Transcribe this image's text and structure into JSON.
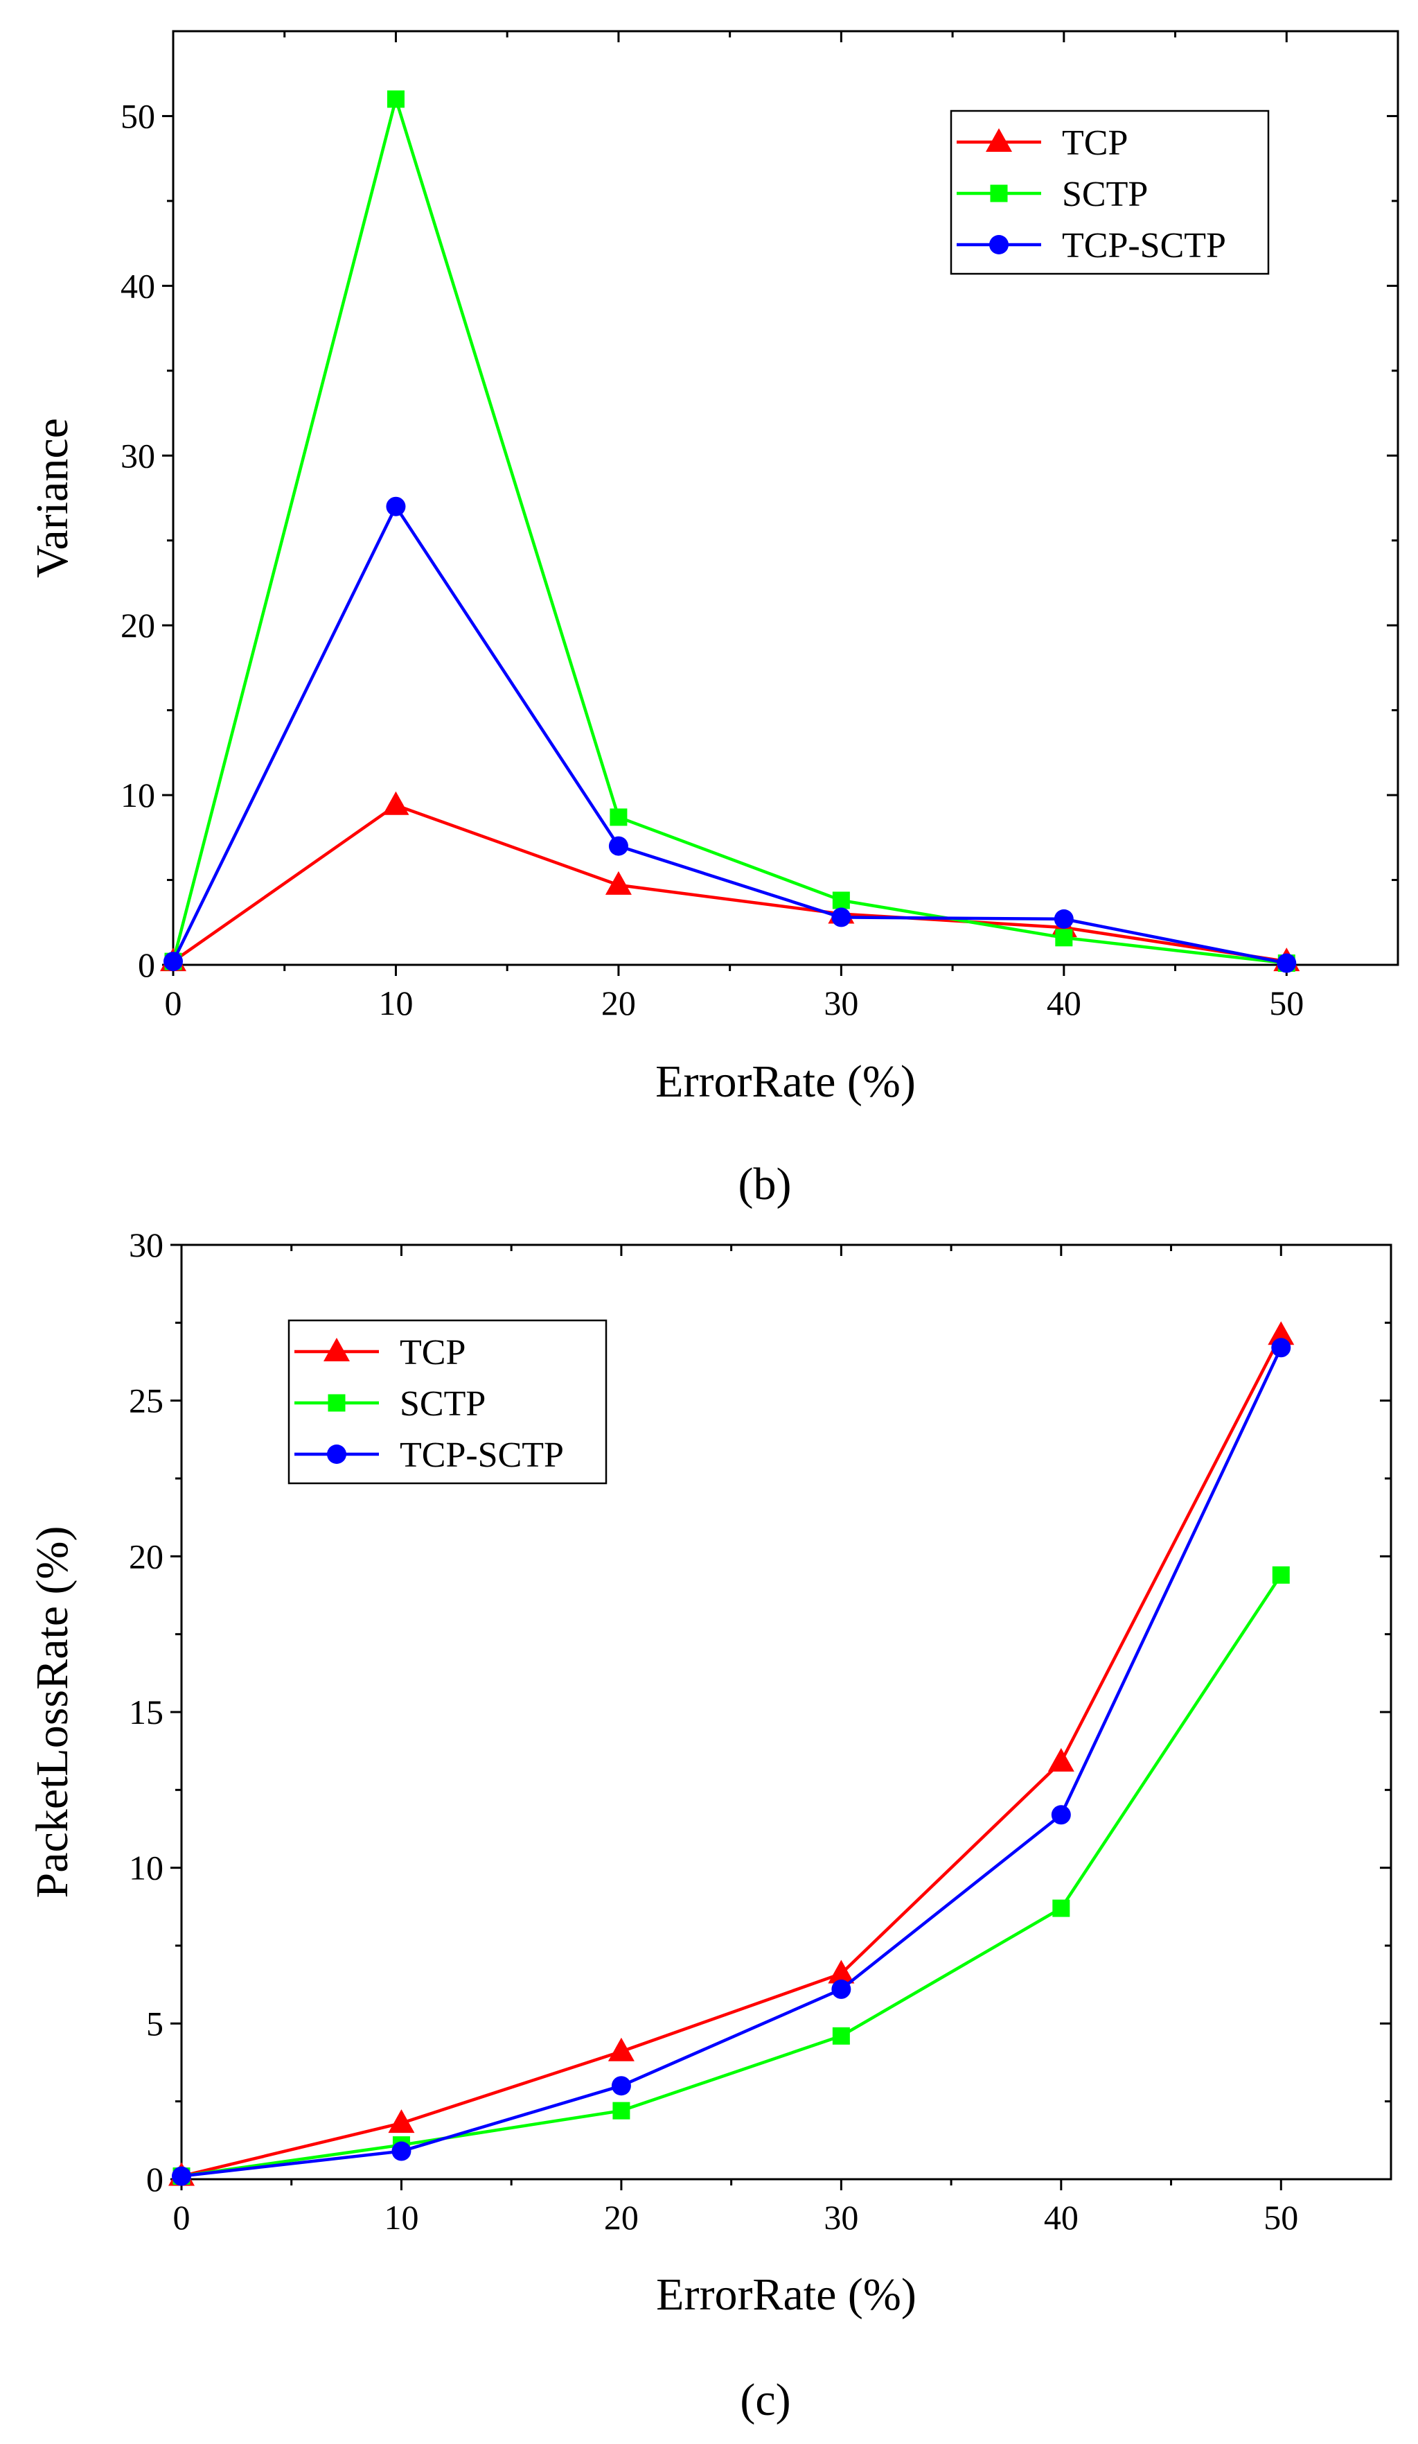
{
  "chart_data": [
    {
      "id": "b",
      "type": "line",
      "panel_label": "(b)",
      "title": "",
      "xlabel": "ErrorRate (%)",
      "ylabel": "Variance",
      "x": [
        0,
        10,
        20,
        30,
        40,
        50
      ],
      "xlim": [
        0,
        55
      ],
      "ylim": [
        0,
        55
      ],
      "x_ticks": [
        0,
        10,
        20,
        30,
        40,
        50
      ],
      "y_ticks": [
        0,
        10,
        20,
        30,
        40,
        50
      ],
      "grid": false,
      "legend_position": "top-right",
      "series": [
        {
          "name": "TCP",
          "color": "#ff0000",
          "marker": "triangle",
          "values": [
            0.2,
            9.4,
            4.7,
            3.0,
            2.2,
            0.2
          ]
        },
        {
          "name": "SCTP",
          "color": "#00ff00",
          "marker": "square",
          "values": [
            0.2,
            51.0,
            8.7,
            3.8,
            1.6,
            0.1
          ]
        },
        {
          "name": "TCP-SCTP",
          "color": "#0000ff",
          "marker": "circle",
          "values": [
            0.2,
            27.0,
            7.0,
            2.8,
            2.7,
            0.1
          ]
        }
      ]
    },
    {
      "id": "c",
      "type": "line",
      "panel_label": "(c)",
      "title": "",
      "xlabel": "ErrorRate (%)",
      "ylabel": "PacketLossRate (%)",
      "x": [
        0,
        10,
        20,
        30,
        40,
        50
      ],
      "xlim": [
        0,
        55
      ],
      "ylim": [
        0,
        30
      ],
      "x_ticks": [
        0,
        10,
        20,
        30,
        40,
        50
      ],
      "y_ticks": [
        0,
        5,
        10,
        15,
        20,
        25,
        30
      ],
      "grid": false,
      "legend_position": "top-left",
      "series": [
        {
          "name": "TCP",
          "color": "#ff0000",
          "marker": "triangle",
          "values": [
            0.1,
            1.8,
            4.1,
            6.6,
            13.4,
            27.1
          ]
        },
        {
          "name": "SCTP",
          "color": "#00ff00",
          "marker": "square",
          "values": [
            0.1,
            1.1,
            2.2,
            4.6,
            8.7,
            19.4
          ]
        },
        {
          "name": "TCP-SCTP",
          "color": "#0000ff",
          "marker": "circle",
          "values": [
            0.1,
            0.9,
            3.0,
            6.1,
            11.7,
            26.7
          ]
        }
      ]
    }
  ]
}
